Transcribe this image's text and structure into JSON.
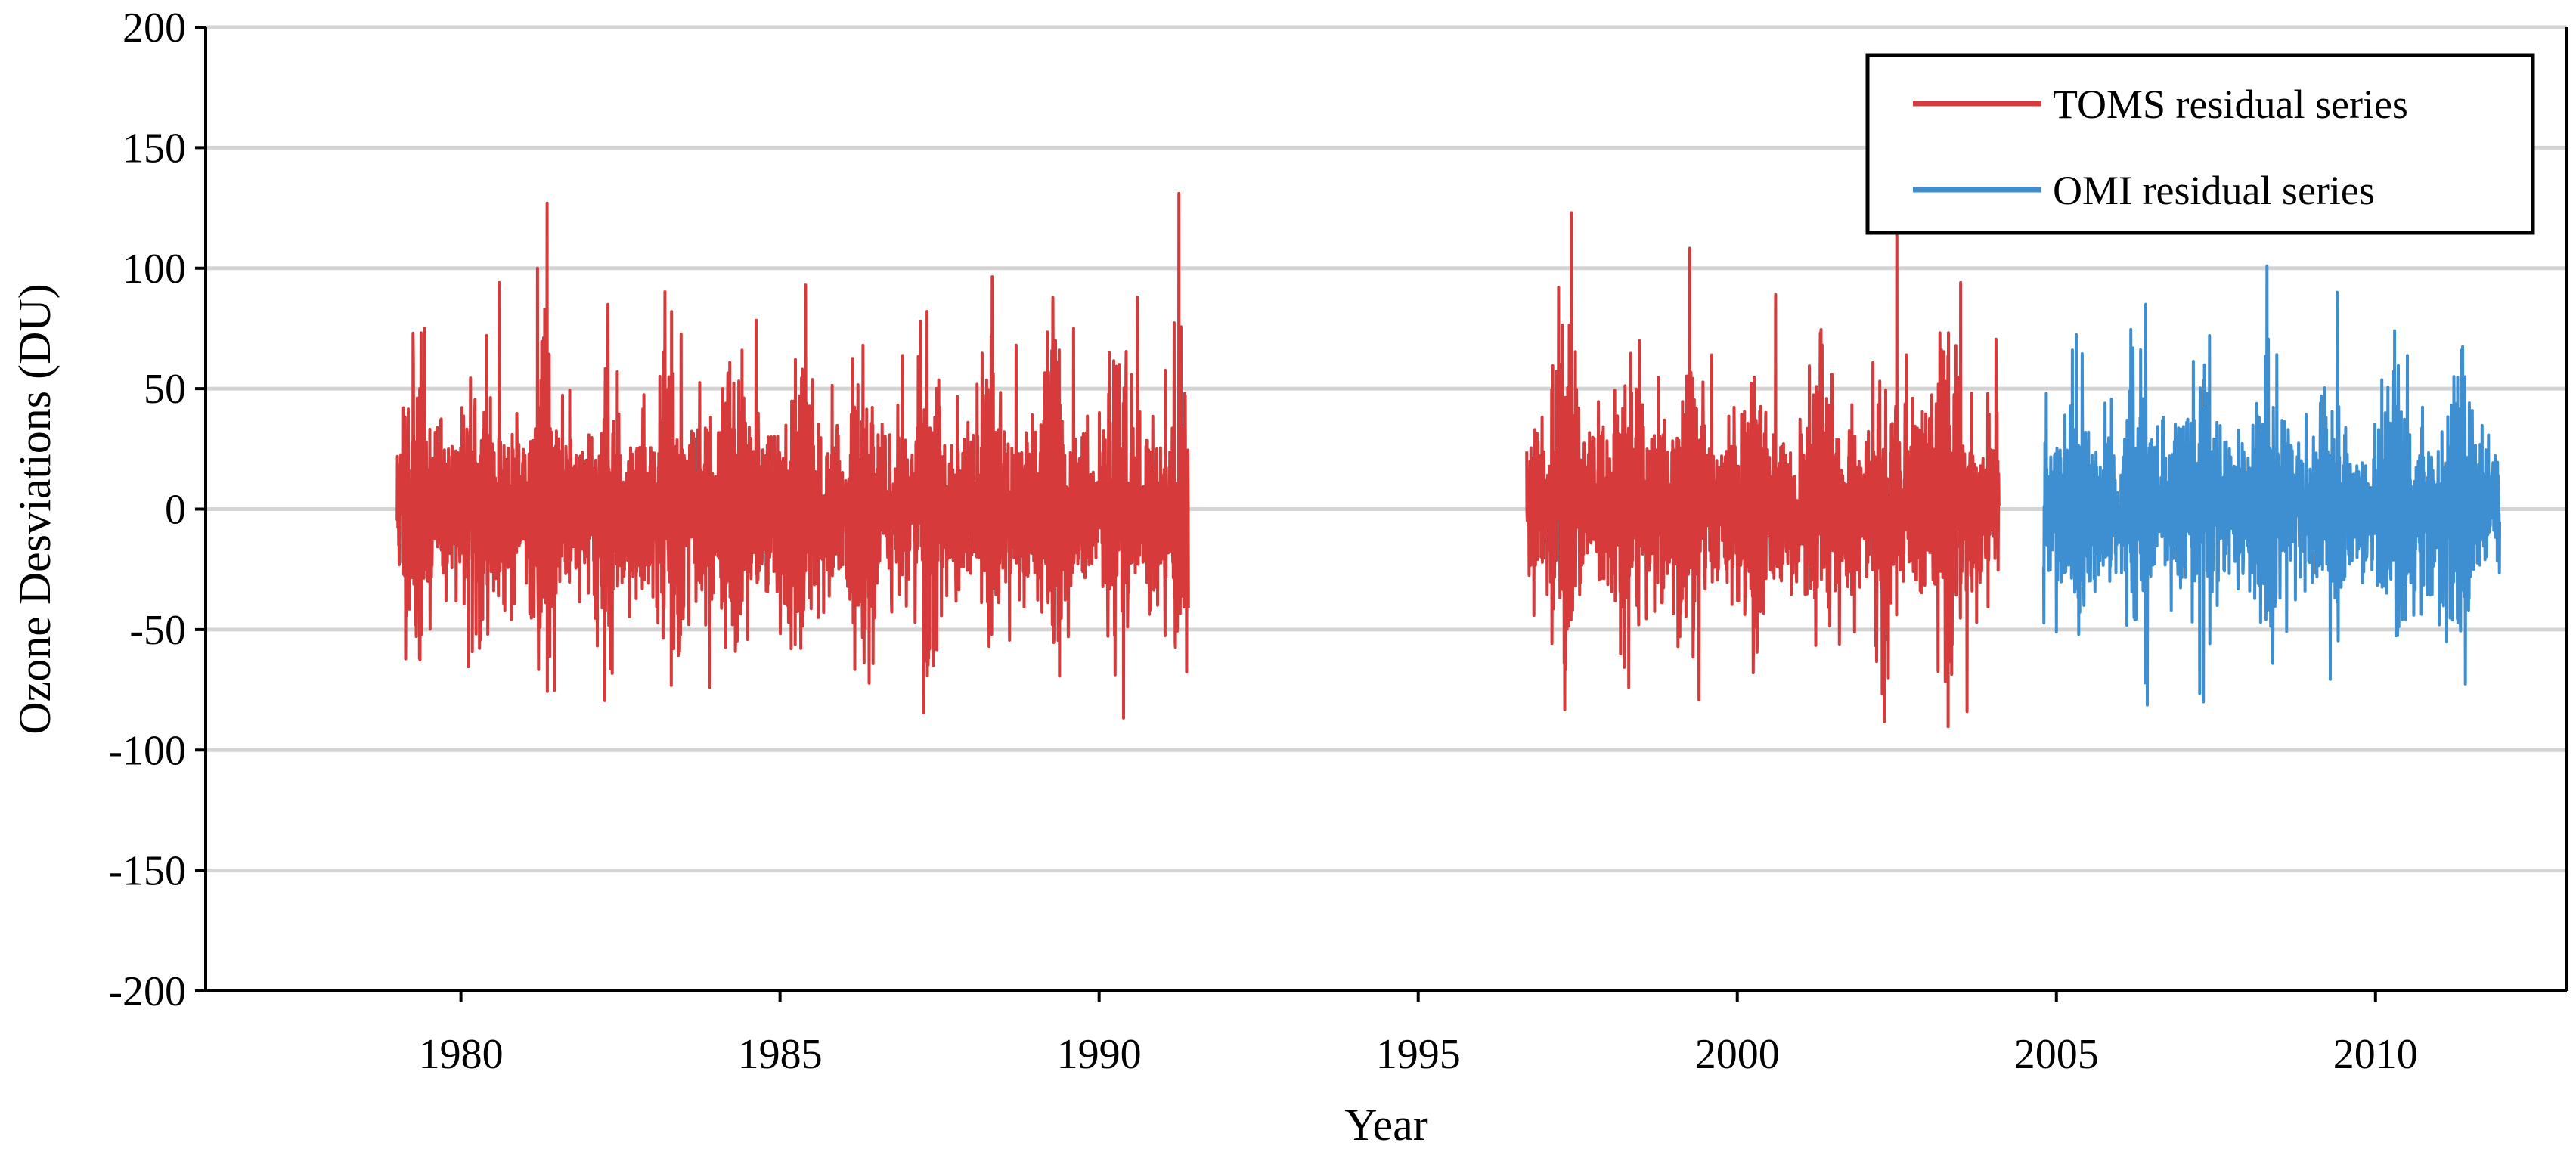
{
  "chart_data": {
    "type": "line",
    "title": "",
    "xlabel": "Year",
    "ylabel": "Ozone Desviations (DU)",
    "xlim": [
      1976.0,
      2013.0
    ],
    "ylim": [
      -200,
      200
    ],
    "x_ticks": [
      1980,
      1985,
      1990,
      1995,
      2000,
      2005,
      2010
    ],
    "y_ticks": [
      200,
      150,
      100,
      50,
      0,
      -50,
      -100,
      -150,
      -200
    ],
    "grid": "horizontal",
    "legend_position": "top-right",
    "series": [
      {
        "name": "TOMS residual series",
        "color": "#d63a3a",
        "segments": [
          {
            "start": 1979.0,
            "end": 1991.4,
            "std": 17,
            "seed": 11,
            "spikes": [
              [
                1979.1,
                42
              ],
              [
                1979.35,
                -62
              ],
              [
                1980.4,
                72
              ],
              [
                1980.6,
                94
              ],
              [
                1981.2,
                100
              ],
              [
                1981.35,
                127
              ],
              [
                1982.3,
                69
              ],
              [
                1983.3,
                82
              ],
              [
                1983.9,
                -74
              ],
              [
                1984.1,
                50
              ],
              [
                1985.4,
                93
              ],
              [
                1985.6,
                -45
              ],
              [
                1986.3,
                68
              ],
              [
                1987.2,
                78
              ],
              [
                1987.4,
                -65
              ],
              [
                1988.7,
                68
              ],
              [
                1989.6,
                75
              ],
              [
                1990.6,
                88
              ],
              [
                1991.25,
                131
              ],
              [
                1991.4,
                -41
              ]
            ]
          },
          {
            "start": 1996.7,
            "end": 2004.1,
            "std": 17,
            "seed": 29,
            "spikes": [
              [
                1997.2,
                92
              ],
              [
                1997.4,
                123
              ],
              [
                1998.3,
                -74
              ],
              [
                1999.1,
                -53
              ],
              [
                1999.6,
                64
              ],
              [
                2000.6,
                89
              ],
              [
                2001.3,
                73
              ],
              [
                2001.6,
                -56
              ],
              [
                2002.5,
                148
              ],
              [
                2002.65,
                64
              ],
              [
                2003.2,
                66
              ],
              [
                2003.5,
                94
              ],
              [
                2003.6,
                -84
              ],
              [
                2003.75,
                -47
              ]
            ]
          }
        ]
      },
      {
        "name": "OMI residual series",
        "color": "#3d8fd1",
        "segments": [
          {
            "start": 2004.8,
            "end": 2011.95,
            "std": 15,
            "seed": 47,
            "spikes": [
              [
                2005.0,
                -51
              ],
              [
                2005.25,
                66
              ],
              [
                2006.4,
                85
              ],
              [
                2006.8,
                -42
              ],
              [
                2007.4,
                72
              ],
              [
                2008.3,
                101
              ],
              [
                2008.2,
                -47
              ],
              [
                2009.4,
                90
              ],
              [
                2010.3,
                74
              ],
              [
                2010.6,
                -44
              ],
              [
                2011.0,
                -48
              ],
              [
                2011.35,
                66
              ]
            ]
          }
        ]
      }
    ]
  }
}
